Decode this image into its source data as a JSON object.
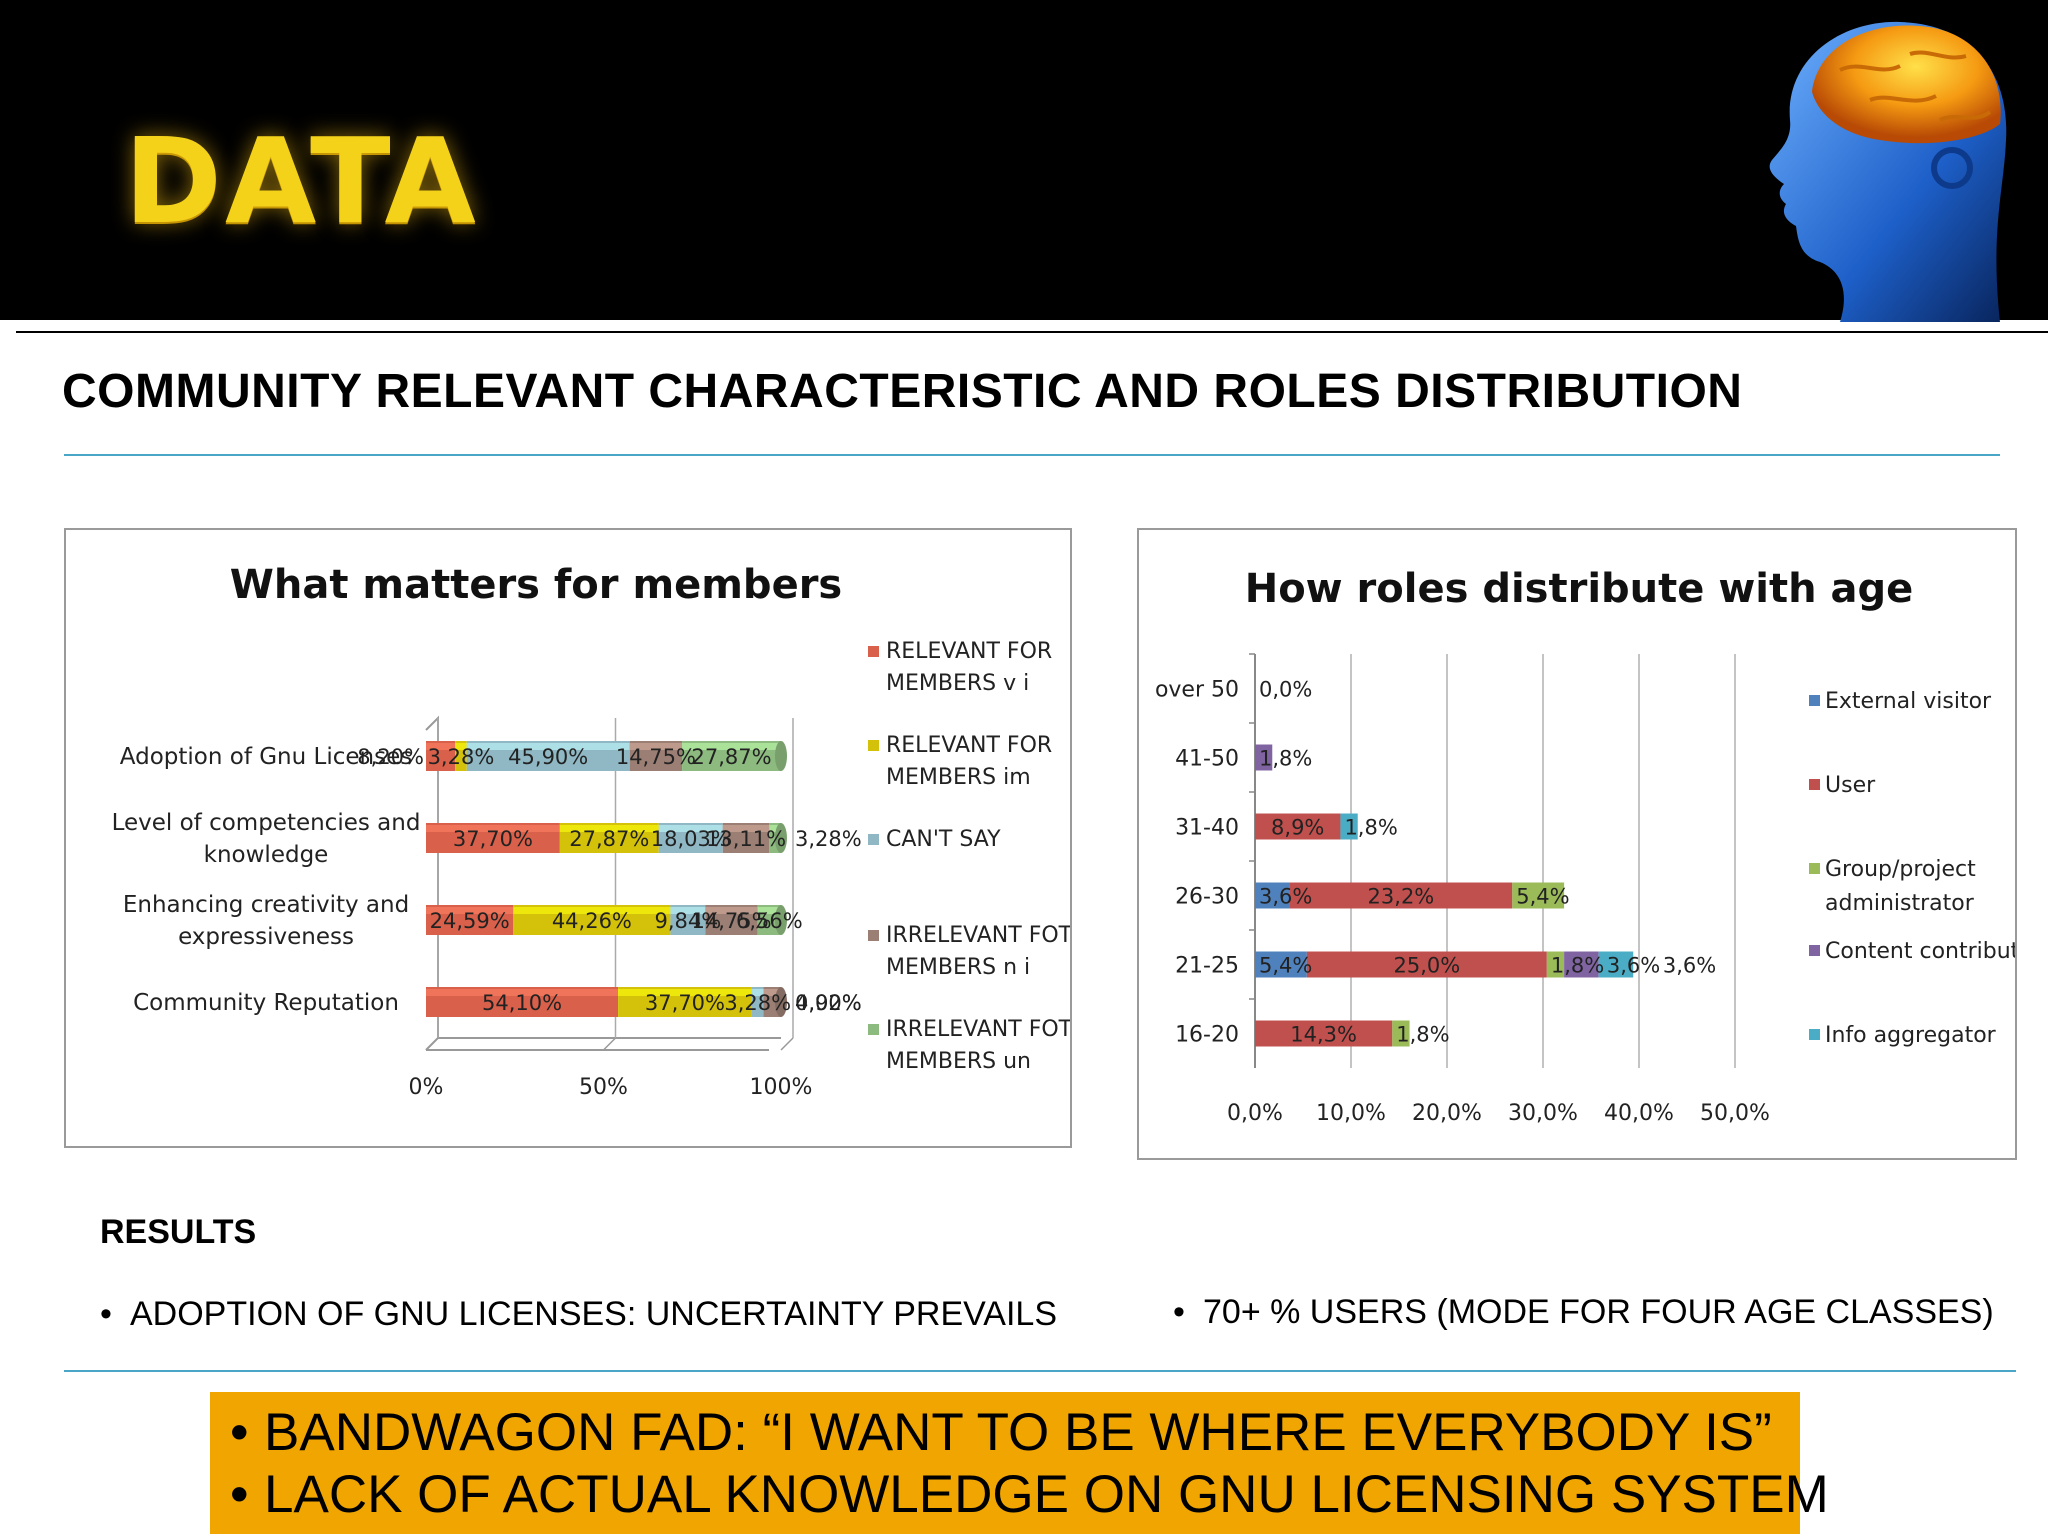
{
  "slide": {
    "title": "DATA",
    "heading": "COMMUNITY RELEVANT CHARACTERISTIC AND ROLES DISTRIBUTION",
    "results_heading": "RESULTS",
    "bullet_left": "ADOPTION OF GNU LICENSES: UNCERTAINTY PREVAILS",
    "bullet_right": "70+ % USERS (MODE FOR FOUR AGE CLASSES)",
    "bullet_glyph": "•",
    "callout": [
      "BANDWAGON FAD: “I WANT TO BE WHERE EVERYBODY IS”",
      "LACK OF ACTUAL KNOWLEDGE ON GNU LICENSING SYSTEM"
    ],
    "colors": {
      "title": "#f5d21a",
      "callout_bg": "#f0a500",
      "header_bg": "#000000",
      "rule": "#4aa6c6"
    }
  },
  "chart_data": [
    {
      "type": "bar",
      "stacked": "percent",
      "orientation": "horizontal",
      "title": "What matters for members",
      "categories": [
        "Adoption of Gnu Licenses",
        "Level of competencies and knowledge",
        "Enhancing creativity and expressiveness",
        "Community Reputation"
      ],
      "series": [
        {
          "name": "RELEVANT FOR MEMBERS v i",
          "color": "#d9604a",
          "values": [
            8.2,
            37.7,
            24.59,
            54.1
          ],
          "labels": [
            "8,20%",
            "37,70%",
            "24,59%",
            "54,10%"
          ]
        },
        {
          "name": "RELEVANT FOR MEMBERS im",
          "color": "#d4c20a",
          "values": [
            3.28,
            27.87,
            44.26,
            37.7
          ],
          "labels": [
            "3,28%",
            "27,87%",
            "44,26%",
            "37,70%"
          ]
        },
        {
          "name": "CAN'T SAY",
          "color": "#8fb8c4",
          "values": [
            45.9,
            18.03,
            9.84,
            3.28
          ],
          "labels": [
            "45,90%",
            "18,03%",
            "9,84%",
            "3,28%"
          ]
        },
        {
          "name": "IRRELEVANT FOT MEMBERS n i",
          "color": "#9c7f74",
          "values": [
            14.75,
            13.11,
            14.75,
            4.92
          ],
          "labels": [
            "14,75%",
            "13,11%",
            "14,75%",
            "4,92%"
          ]
        },
        {
          "name": "IRRELEVANT FOT MEMBERS un",
          "color": "#8dbb7f",
          "values": [
            27.87,
            3.28,
            6.56,
            0.0
          ],
          "labels": [
            "27,87%",
            "3,28%",
            "6,56%",
            "0,00%"
          ]
        }
      ],
      "xticks": [
        "0%",
        "50%",
        "100%"
      ],
      "xlim": [
        0,
        100
      ],
      "legend": "right"
    },
    {
      "type": "bar",
      "stacked": true,
      "orientation": "horizontal",
      "title": "How roles distribute with age",
      "categories": [
        "over 50",
        "41-50",
        "31-40",
        "26-30",
        "21-25",
        "16-20"
      ],
      "series": [
        {
          "name": "External visitor",
          "color": "#4f81bd",
          "values": [
            0.0,
            0,
            0,
            3.6,
            5.4,
            0
          ],
          "labels": [
            "0,0%",
            "",
            "",
            "3,6%",
            "5,4%",
            ""
          ]
        },
        {
          "name": "User",
          "color": "#c0504d",
          "values": [
            0,
            0,
            8.9,
            23.2,
            25.0,
            14.3
          ],
          "labels": [
            "",
            "",
            "8,9%",
            "23,2%",
            "25,0%",
            "14,3%"
          ]
        },
        {
          "name": "Group/project administrator",
          "color": "#9bbb59",
          "values": [
            0,
            0,
            0,
            5.4,
            1.8,
            1.8
          ],
          "labels": [
            "",
            "",
            "",
            "5,4%",
            "1,8%",
            "1,8%"
          ]
        },
        {
          "name": "Content contributor",
          "color": "#8064a2",
          "values": [
            0,
            1.8,
            0,
            0,
            3.6,
            0
          ],
          "labels": [
            "",
            "1,8%",
            "",
            "",
            "3,6%",
            ""
          ]
        },
        {
          "name": "Info aggregator",
          "color": "#4bacc6",
          "values": [
            0,
            0,
            1.8,
            0,
            3.6,
            0
          ],
          "labels": [
            "",
            "",
            "1,8%",
            "",
            "3,6%",
            ""
          ]
        }
      ],
      "xticks": [
        "0,0%",
        "10,0%",
        "20,0%",
        "30,0%",
        "40,0%",
        "50,0%"
      ],
      "xlim": [
        0,
        50
      ],
      "grid": true,
      "legend": "right"
    }
  ]
}
